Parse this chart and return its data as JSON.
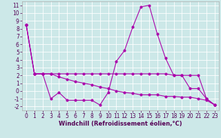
{
  "xlabel": "Windchill (Refroidissement éolien,°C)",
  "bg_color": "#cce8e8",
  "line_color": "#aa00aa",
  "xlim": [
    -0.5,
    23.5
  ],
  "ylim": [
    -2.5,
    11.5
  ],
  "xticks": [
    0,
    1,
    2,
    3,
    4,
    5,
    6,
    7,
    8,
    9,
    10,
    11,
    12,
    13,
    14,
    15,
    16,
    17,
    18,
    19,
    20,
    21,
    22,
    23
  ],
  "yticks": [
    -2,
    -1,
    0,
    1,
    2,
    3,
    4,
    5,
    6,
    7,
    8,
    9,
    10,
    11
  ],
  "series1_x": [
    0,
    1,
    2,
    3,
    4,
    5,
    6,
    7,
    8,
    9,
    10,
    11,
    12,
    13,
    14,
    15,
    16,
    17,
    18,
    19,
    20,
    21,
    22,
    23
  ],
  "series1_y": [
    8.5,
    2.2,
    2.2,
    -1.0,
    -0.2,
    -1.2,
    -1.2,
    -1.2,
    -1.2,
    -1.8,
    -0.2,
    3.8,
    5.2,
    8.2,
    10.8,
    11.0,
    7.3,
    4.2,
    2.0,
    2.0,
    0.3,
    0.3,
    -1.0,
    -1.8
  ],
  "series2_x": [
    0,
    1,
    2,
    3,
    4,
    5,
    6,
    7,
    8,
    9,
    10,
    11,
    12,
    13,
    14,
    15,
    16,
    17,
    18,
    19,
    20,
    21,
    22,
    23
  ],
  "series2_y": [
    8.5,
    2.2,
    2.2,
    2.2,
    2.2,
    2.2,
    2.2,
    2.2,
    2.2,
    2.2,
    2.2,
    2.2,
    2.2,
    2.2,
    2.2,
    2.2,
    2.2,
    2.2,
    2.0,
    2.0,
    2.0,
    2.0,
    -1.0,
    -1.8
  ],
  "series3_x": [
    0,
    1,
    2,
    3,
    4,
    5,
    6,
    7,
    8,
    9,
    10,
    11,
    12,
    13,
    14,
    15,
    16,
    17,
    18,
    19,
    20,
    21,
    22,
    23
  ],
  "series3_y": [
    8.5,
    2.2,
    2.2,
    2.2,
    1.8,
    1.5,
    1.2,
    1.0,
    0.8,
    0.5,
    0.3,
    0.0,
    -0.2,
    -0.3,
    -0.5,
    -0.5,
    -0.5,
    -0.7,
    -0.7,
    -0.8,
    -0.8,
    -1.0,
    -1.2,
    -1.8
  ],
  "tick_fontsize": 5.5,
  "xlabel_fontsize": 6.0,
  "marker_size": 2.0,
  "linewidth": 0.8
}
